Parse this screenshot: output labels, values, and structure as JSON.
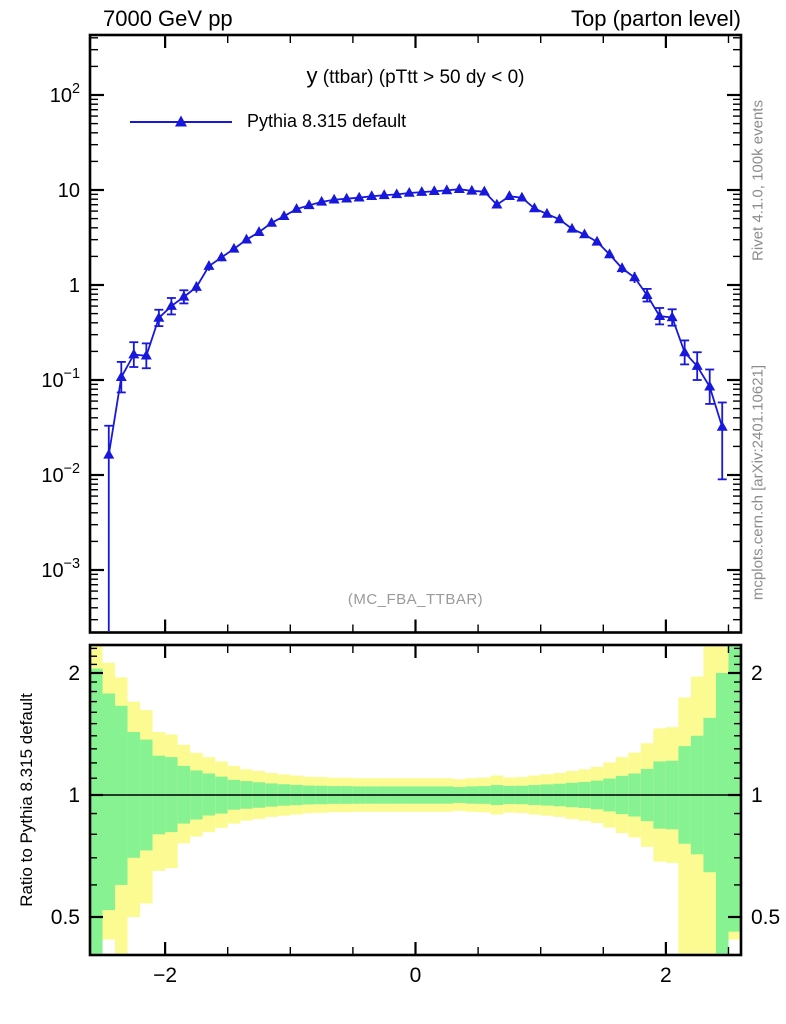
{
  "header": {
    "left": "7000 GeV pp",
    "right": "Top (parton level)"
  },
  "watermarks": {
    "rivet": "Rivet 4.1.0,  100k events",
    "mcplots": "mcplots.cern.ch [arXiv:2401.10621]",
    "analysis": "(MC_FBA_TTBAR)"
  },
  "legend": {
    "entries": [
      {
        "label": "Pythia 8.315 default",
        "color": "#1818dd",
        "marker": "triangle-up"
      }
    ]
  },
  "ratio_axis_title": "Ratio to Pythia 8.315 default",
  "chart_data": {
    "type": "line",
    "title": "y (ttbar) (pTtt > 50 dy < 0)",
    "title_obs": "y",
    "title_rest": " (ttbar) (pTtt > 50 dy < 0)",
    "xlabel": "",
    "legend_position": "top-left",
    "grid": false,
    "x": {
      "min": -2.6,
      "max": 2.6,
      "minor_step": 0.5,
      "ticks": [
        {
          "v": -2,
          "label": "−2"
        },
        {
          "v": 0,
          "label": "0"
        },
        {
          "v": 2,
          "label": "2"
        }
      ]
    },
    "main_panel": {
      "ylog": true,
      "ymin": 0.00022,
      "ymax": 430,
      "yticks": [
        {
          "v": 100,
          "label": "10^2"
        },
        {
          "v": 10,
          "label": "10"
        },
        {
          "v": 1,
          "label": "1"
        },
        {
          "v": 0.1,
          "label": "10^−1"
        },
        {
          "v": 0.01,
          "label": "10^−2"
        },
        {
          "v": 0.001,
          "label": "10^−3"
        }
      ],
      "series": [
        {
          "name": "Pythia 8.315 default",
          "color": "#1818dd",
          "marker": "triangle-up",
          "x": [
            -2.45,
            -2.35,
            -2.25,
            -2.15,
            -2.05,
            -1.95,
            -1.85,
            -1.75,
            -1.65,
            -1.55,
            -1.45,
            -1.35,
            -1.25,
            -1.15,
            -1.05,
            -0.95,
            -0.85,
            -0.75,
            -0.65,
            -0.55,
            -0.45,
            -0.35,
            -0.25,
            -0.15,
            -0.05,
            0.05,
            0.15,
            0.25,
            0.35,
            0.45,
            0.55,
            0.65,
            0.75,
            0.85,
            0.95,
            1.05,
            1.15,
            1.25,
            1.35,
            1.45,
            1.55,
            1.65,
            1.75,
            1.85,
            1.95,
            2.05,
            2.15,
            2.25,
            2.35,
            2.45
          ],
          "y": [
            0.0163,
            0.107,
            0.185,
            0.18,
            0.45,
            0.6,
            0.75,
            0.95,
            1.58,
            1.95,
            2.4,
            3.0,
            3.6,
            4.5,
            5.3,
            6.3,
            6.9,
            7.5,
            7.9,
            8.1,
            8.3,
            8.6,
            8.8,
            9.0,
            9.3,
            9.5,
            9.7,
            9.9,
            10.2,
            9.8,
            9.6,
            7.0,
            8.6,
            8.3,
            6.4,
            5.6,
            4.9,
            3.9,
            3.4,
            2.85,
            2.1,
            1.5,
            1.2,
            0.78,
            0.47,
            0.455,
            0.195,
            0.14,
            0.085,
            0.032
          ],
          "ylo": [
            0.0002,
            0.074,
            0.137,
            0.133,
            0.369,
            0.49,
            0.64,
            0.83,
            1.41,
            1.77,
            2.2,
            2.78,
            3.33,
            4.17,
            4.91,
            6.0,
            6.57,
            7.14,
            7.52,
            7.71,
            7.9,
            8.19,
            8.38,
            8.57,
            8.86,
            9.05,
            9.24,
            9.43,
            9.71,
            9.33,
            9.14,
            6.67,
            8.19,
            7.9,
            6.09,
            5.19,
            4.54,
            3.61,
            3.15,
            2.61,
            1.91,
            1.34,
            1.05,
            0.67,
            0.385,
            0.373,
            0.146,
            0.1,
            0.056,
            0.009
          ],
          "yhi": [
            0.033,
            0.155,
            0.25,
            0.243,
            0.549,
            0.73,
            0.88,
            1.08,
            1.77,
            2.15,
            2.62,
            3.24,
            3.89,
            4.86,
            5.72,
            6.62,
            7.25,
            7.88,
            8.3,
            8.51,
            8.72,
            9.03,
            9.24,
            9.45,
            9.77,
            9.98,
            10.19,
            10.4,
            10.71,
            10.29,
            10.08,
            7.35,
            9.03,
            8.72,
            6.72,
            6.05,
            5.29,
            4.21,
            3.67,
            3.11,
            2.31,
            1.68,
            1.37,
            0.91,
            0.573,
            0.555,
            0.261,
            0.196,
            0.129,
            0.058
          ]
        }
      ]
    },
    "ratio_panel": {
      "ylog": true,
      "ymin": 0.403,
      "ymax": 2.34,
      "ref_line": 1,
      "yticks": [
        {
          "v": 2,
          "label": "2"
        },
        {
          "v": 1,
          "label": "1"
        },
        {
          "v": 0.5,
          "label": "0.5"
        }
      ],
      "band_colors": {
        "inner": "#86f291",
        "outer": "#fbfb91"
      },
      "bin_width": 0.1,
      "bins": [
        {
          "x0": -2.6,
          "g": [
            0.38,
            2.05
          ],
          "y": [
            0.38,
            2.4
          ]
        },
        {
          "x0": -2.5,
          "g": [
            0.52,
            1.78
          ],
          "y": [
            0.44,
            2.12
          ]
        },
        {
          "x0": -2.4,
          "g": [
            0.6,
            1.66
          ],
          "y": [
            0.38,
            1.95
          ]
        },
        {
          "x0": -2.3,
          "g": [
            0.7,
            1.43
          ],
          "y": [
            0.5,
            1.7
          ]
        },
        {
          "x0": -2.2,
          "g": [
            0.73,
            1.37
          ],
          "y": [
            0.54,
            1.62
          ]
        },
        {
          "x0": -2.1,
          "g": [
            0.8,
            1.25
          ],
          "y": [
            0.65,
            1.43
          ]
        },
        {
          "x0": -2.0,
          "g": [
            0.81,
            1.24
          ],
          "y": [
            0.66,
            1.41
          ]
        },
        {
          "x0": -1.9,
          "g": [
            0.85,
            1.18
          ],
          "y": [
            0.76,
            1.33
          ]
        },
        {
          "x0": -1.8,
          "g": [
            0.87,
            1.15
          ],
          "y": [
            0.79,
            1.27
          ]
        },
        {
          "x0": -1.7,
          "g": [
            0.89,
            1.13
          ],
          "y": [
            0.81,
            1.24
          ]
        },
        {
          "x0": -1.6,
          "g": [
            0.9,
            1.11
          ],
          "y": [
            0.83,
            1.21
          ]
        },
        {
          "x0": -1.5,
          "g": [
            0.92,
            1.09
          ],
          "y": [
            0.85,
            1.18
          ]
        },
        {
          "x0": -1.4,
          "g": [
            0.925,
            1.082
          ],
          "y": [
            0.865,
            1.157
          ]
        },
        {
          "x0": -1.3,
          "g": [
            0.93,
            1.075
          ],
          "y": [
            0.873,
            1.146
          ]
        },
        {
          "x0": -1.2,
          "g": [
            0.936,
            1.068
          ],
          "y": [
            0.883,
            1.133
          ]
        },
        {
          "x0": -1.1,
          "g": [
            0.941,
            1.063
          ],
          "y": [
            0.889,
            1.124
          ]
        },
        {
          "x0": -1.0,
          "g": [
            0.944,
            1.059
          ],
          "y": [
            0.895,
            1.117
          ]
        },
        {
          "x0": -0.9,
          "g": [
            0.948,
            1.055
          ],
          "y": [
            0.902,
            1.109
          ]
        },
        {
          "x0": -0.8,
          "g": [
            0.949,
            1.054
          ],
          "y": [
            0.904,
            1.107
          ]
        },
        {
          "x0": -0.7,
          "g": [
            0.951,
            1.052
          ],
          "y": [
            0.907,
            1.103
          ]
        },
        {
          "x0": -0.6,
          "g": [
            0.951,
            1.052
          ],
          "y": [
            0.907,
            1.103
          ]
        },
        {
          "x0": -0.5,
          "g": [
            0.952,
            1.05
          ],
          "y": [
            0.909,
            1.1
          ]
        },
        {
          "x0": -0.4,
          "g": [
            0.952,
            1.05
          ],
          "y": [
            0.909,
            1.1
          ]
        },
        {
          "x0": -0.3,
          "g": [
            0.952,
            1.05
          ],
          "y": [
            0.909,
            1.1
          ]
        },
        {
          "x0": -0.2,
          "g": [
            0.952,
            1.05
          ],
          "y": [
            0.909,
            1.1
          ]
        },
        {
          "x0": -0.1,
          "g": [
            0.952,
            1.05
          ],
          "y": [
            0.909,
            1.1
          ]
        },
        {
          "x0": 0.0,
          "g": [
            0.952,
            1.05
          ],
          "y": [
            0.909,
            1.1
          ]
        },
        {
          "x0": 0.1,
          "g": [
            0.952,
            1.05
          ],
          "y": [
            0.909,
            1.1
          ]
        },
        {
          "x0": 0.2,
          "g": [
            0.952,
            1.05
          ],
          "y": [
            0.909,
            1.1
          ]
        },
        {
          "x0": 0.3,
          "g": [
            0.956,
            1.046
          ],
          "y": [
            0.914,
            1.094
          ]
        },
        {
          "x0": 0.4,
          "g": [
            0.952,
            1.05
          ],
          "y": [
            0.909,
            1.1
          ]
        },
        {
          "x0": 0.5,
          "g": [
            0.951,
            1.052
          ],
          "y": [
            0.906,
            1.104
          ]
        },
        {
          "x0": 0.6,
          "g": [
            0.945,
            1.058
          ],
          "y": [
            0.895,
            1.117
          ]
        },
        {
          "x0": 0.7,
          "g": [
            0.95,
            1.053
          ],
          "y": [
            0.905,
            1.105
          ]
        },
        {
          "x0": 0.8,
          "g": [
            0.949,
            1.054
          ],
          "y": [
            0.903,
            1.107
          ]
        },
        {
          "x0": 0.9,
          "g": [
            0.945,
            1.058
          ],
          "y": [
            0.895,
            1.117
          ]
        },
        {
          "x0": 1.0,
          "g": [
            0.942,
            1.062
          ],
          "y": [
            0.889,
            1.125
          ]
        },
        {
          "x0": 1.1,
          "g": [
            0.938,
            1.066
          ],
          "y": [
            0.883,
            1.133
          ]
        },
        {
          "x0": 1.2,
          "g": [
            0.933,
            1.072
          ],
          "y": [
            0.873,
            1.146
          ]
        },
        {
          "x0": 1.3,
          "g": [
            0.929,
            1.077
          ],
          "y": [
            0.864,
            1.157
          ]
        },
        {
          "x0": 1.4,
          "g": [
            0.922,
            1.085
          ],
          "y": [
            0.853,
            1.173
          ]
        },
        {
          "x0": 1.5,
          "g": [
            0.911,
            1.098
          ],
          "y": [
            0.831,
            1.203
          ]
        },
        {
          "x0": 1.6,
          "g": [
            0.897,
            1.115
          ],
          "y": [
            0.806,
            1.24
          ]
        },
        {
          "x0": 1.7,
          "g": [
            0.885,
            1.13
          ],
          "y": [
            0.786,
            1.272
          ]
        },
        {
          "x0": 1.8,
          "g": [
            0.862,
            1.16
          ],
          "y": [
            0.745,
            1.342
          ]
        },
        {
          "x0": 1.9,
          "g": [
            0.826,
            1.21
          ],
          "y": [
            0.685,
            1.46
          ]
        },
        {
          "x0": 2.0,
          "g": [
            0.823,
            1.215
          ],
          "y": [
            0.68,
            1.47
          ]
        },
        {
          "x0": 2.1,
          "g": [
            0.758,
            1.32
          ],
          "y": [
            0.4,
            1.74
          ]
        },
        {
          "x0": 2.2,
          "g": [
            0.714,
            1.4
          ],
          "y": [
            0.4,
            1.96
          ]
        },
        {
          "x0": 2.3,
          "g": [
            0.645,
            1.55
          ],
          "y": [
            0.4,
            2.4
          ]
        },
        {
          "x0": 2.4,
          "g": [
            0.4,
            2.0
          ],
          "y": [
            0.38,
            2.4
          ]
        },
        {
          "x0": 2.5,
          "g": [
            0.46,
            2.4
          ],
          "y": [
            0.44,
            2.4
          ]
        }
      ]
    }
  }
}
